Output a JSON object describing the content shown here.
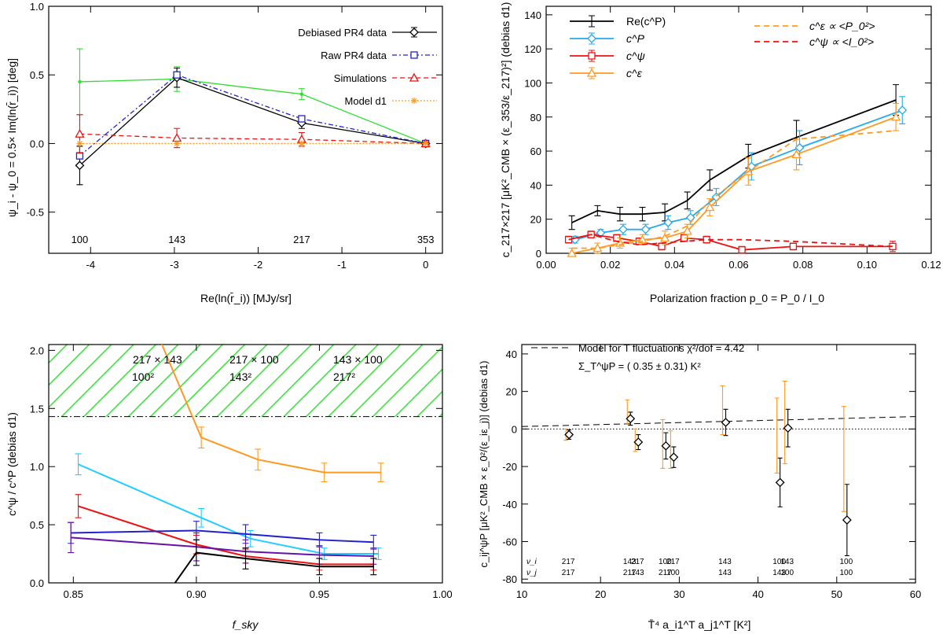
{
  "colors": {
    "black": "#000000",
    "blue": "#2222cc",
    "red": "#ee1111",
    "orange": "#ff9922",
    "green": "#33dd33",
    "sky": "#22aaee",
    "cyan": "#22ccff",
    "purple": "#6611aa"
  },
  "chart_data": [
    {
      "type": "line",
      "id": "p1",
      "ylabel": "ψ_i - ψ_0 = 0.5× Im(ln(r̄_i)) [deg]",
      "xlabel": "Re(ln(r̄_i)) [MJy/sr]",
      "xlim": [
        -4.5,
        0.2
      ],
      "ylim": [
        -0.8,
        1.0
      ],
      "xticks": [
        -4,
        -3,
        -2,
        -1,
        0
      ],
      "yticks": [
        -0.5,
        0.0,
        0.5,
        1.0
      ],
      "frequency_labels": [
        {
          "x": -4.13,
          "text": "100"
        },
        {
          "x": -2.97,
          "text": "143"
        },
        {
          "x": -1.48,
          "text": "217"
        },
        {
          "x": 0,
          "text": "353"
        }
      ],
      "legend": [
        {
          "label": "Debiased PR4 data",
          "color": "black",
          "dash": "",
          "marker": "diamond"
        },
        {
          "label": "Raw PR4 data",
          "color": "blue",
          "dash": "6,3,2,3",
          "marker": "square"
        },
        {
          "label": "Simulations",
          "color": "red",
          "dash": "6,4",
          "marker": "triangle"
        },
        {
          "label": "Model d1",
          "color": "orange",
          "dash": "2,2",
          "marker": "star"
        }
      ],
      "series": [
        {
          "name": "Green",
          "color": "green",
          "dash": "",
          "marker": "point",
          "x": [
            -4.13,
            -2.97,
            -1.48,
            0
          ],
          "y": [
            0.45,
            0.47,
            0.36,
            0.0
          ],
          "err": [
            0.24,
            0.09,
            0.04,
            0.01
          ]
        },
        {
          "name": "Debiased PR4 data",
          "color": "black",
          "dash": "",
          "marker": "diamond",
          "x": [
            -4.13,
            -2.97,
            -1.48,
            0
          ],
          "y": [
            -0.16,
            0.48,
            0.15,
            0.0
          ],
          "err": [
            0.14,
            0.07,
            0.04,
            0.01
          ]
        },
        {
          "name": "Raw PR4 data",
          "color": "blue",
          "dash": "6,3,2,3",
          "marker": "square",
          "x": [
            -4.13,
            -2.97,
            -1.48,
            0
          ],
          "y": [
            -0.09,
            0.5,
            0.18,
            0.0
          ],
          "err": [
            0,
            0,
            0,
            0
          ]
        },
        {
          "name": "Simulations",
          "color": "red",
          "dash": "6,4",
          "marker": "triangle",
          "x": [
            -4.13,
            -2.97,
            -1.48,
            0
          ],
          "y": [
            0.07,
            0.04,
            0.03,
            0.0
          ],
          "err": [
            0.14,
            0.07,
            0.05,
            0.01
          ]
        },
        {
          "name": "Model d1",
          "color": "orange",
          "dash": "2,2",
          "marker": "star",
          "x": [
            -4.13,
            -2.97,
            -1.48,
            0
          ],
          "y": [
            0.0,
            0.0,
            0.0,
            0.0
          ],
          "err": [
            0,
            0,
            0,
            0
          ]
        }
      ]
    },
    {
      "type": "line",
      "id": "p2",
      "ylabel": "c_217×217 [μK²_CMB × (ε_353/ε_217)²] (debias d1)",
      "xlabel": "Polarization fraction p_0 = P_0 / I_0",
      "xlim": [
        0,
        0.12
      ],
      "ylim": [
        0,
        145
      ],
      "xticks": [
        0.0,
        0.02,
        0.04,
        0.06,
        0.08,
        0.1,
        0.12
      ],
      "yticks": [
        0,
        20,
        40,
        60,
        80,
        100,
        120,
        140
      ],
      "legend": [
        {
          "label": "Re(c^P)",
          "color": "black"
        },
        {
          "label": "c^P",
          "color": "sky"
        },
        {
          "label": "c^ψ",
          "color": "red"
        },
        {
          "label": "c^ε",
          "color": "orange"
        },
        {
          "label": "c^ε ∝ <P_0²>",
          "color": "orange"
        },
        {
          "label": "c^ψ ∝ <I_0²>",
          "color": "red"
        }
      ],
      "series": [
        {
          "name": "Re(c^P)",
          "color": "black",
          "marker": "point",
          "x": [
            0.008,
            0.016,
            0.023,
            0.03,
            0.037,
            0.044,
            0.051,
            0.063,
            0.078,
            0.109
          ],
          "y": [
            18,
            25,
            23,
            23,
            24,
            31,
            43,
            57,
            68,
            90
          ],
          "err": [
            4,
            3,
            4,
            4,
            5,
            5,
            6,
            7,
            10,
            9
          ]
        },
        {
          "name": "c^P",
          "color": "sky",
          "marker": "diamond",
          "x": [
            0.009,
            0.017,
            0.024,
            0.031,
            0.038,
            0.045,
            0.053,
            0.064,
            0.079,
            0.111
          ],
          "y": [
            8,
            12,
            14,
            14,
            18,
            21,
            33,
            51,
            62,
            84
          ],
          "err": [
            2,
            2,
            3,
            3,
            4,
            4,
            5,
            8,
            10,
            8
          ]
        },
        {
          "name": "c^ψ",
          "color": "red",
          "marker": "square",
          "x": [
            0.007,
            0.014,
            0.022,
            0.029,
            0.036,
            0.043,
            0.05,
            0.061,
            0.077,
            0.108
          ],
          "y": [
            8,
            11,
            9,
            7,
            4,
            9,
            8,
            2,
            4,
            4
          ],
          "err": [
            2,
            2,
            2,
            2,
            2,
            2,
            2,
            2,
            2,
            3
          ]
        },
        {
          "name": "c^ε",
          "color": "orange",
          "marker": "triangle",
          "x": [
            0.008,
            0.016,
            0.023,
            0.03,
            0.037,
            0.044,
            0.051,
            0.063,
            0.078,
            0.109
          ],
          "y": [
            0,
            3,
            6,
            8,
            9,
            13,
            27,
            48,
            58,
            80
          ],
          "err": [
            3,
            3,
            3,
            3,
            4,
            4,
            5,
            8,
            9,
            8
          ]
        },
        {
          "name": "c^ε ∝ <P_0²>",
          "color": "orange",
          "dash": "7,5",
          "marker": "none",
          "x": [
            0.008,
            0.016,
            0.023,
            0.03,
            0.037,
            0.044,
            0.051,
            0.063,
            0.078,
            0.109
          ],
          "y": [
            3,
            3,
            5,
            7,
            10,
            16,
            31,
            48,
            67,
            72
          ],
          "err": []
        },
        {
          "name": "c^ψ ∝ <I_0²>",
          "color": "red",
          "dash": "7,5",
          "marker": "none",
          "x": [
            0.007,
            0.014,
            0.022,
            0.029,
            0.036,
            0.043,
            0.05,
            0.061,
            0.077,
            0.108
          ],
          "y": [
            8,
            11,
            7,
            5,
            6,
            7,
            8,
            8,
            7,
            4
          ],
          "err": []
        }
      ]
    },
    {
      "type": "line",
      "id": "p3",
      "ylabel": "c^ψ / c^P (debias d1)",
      "xlabel": "f_sky",
      "xlim": [
        0.84,
        1.0
      ],
      "ylim": [
        0,
        2.05
      ],
      "xticks": [
        0.85,
        0.9,
        0.95,
        1.0
      ],
      "yticks": [
        0.0,
        0.5,
        1.0,
        1.5,
        2.0
      ],
      "hatch_from": 1.43,
      "labels": [
        {
          "text": "217 × 143",
          "color": "red"
        },
        {
          "text": "217 × 100",
          "color": "blue"
        },
        {
          "text": "143 × 100",
          "color": "black"
        },
        {
          "text": "100²",
          "color": "orange"
        },
        {
          "text": "143²",
          "color": "cyan"
        },
        {
          "text": "217²",
          "color": "purple"
        }
      ],
      "series": [
        {
          "name": "100²",
          "color": "orange",
          "x": [
            0.885,
            0.902,
            0.925,
            0.952,
            0.975
          ],
          "y": [
            2.1,
            1.25,
            1.06,
            0.95,
            0.95
          ],
          "err": [
            0,
            0.09,
            0.09,
            0.08,
            0.08
          ]
        },
        {
          "name": "143²",
          "color": "cyan",
          "x": [
            0.852,
            0.902,
            0.922,
            0.952,
            0.974
          ],
          "y": [
            1.02,
            0.56,
            0.38,
            0.25,
            0.25
          ],
          "err": [
            0.09,
            0.08,
            0.07,
            0.05,
            0.05
          ]
        },
        {
          "name": "217 × 143",
          "color": "red",
          "x": [
            0.852,
            0.9,
            0.92,
            0.95,
            0.972
          ],
          "y": [
            0.66,
            0.33,
            0.23,
            0.16,
            0.16
          ],
          "err": [
            0.1,
            0.08,
            0.06,
            0.05,
            0.05
          ]
        },
        {
          "name": "217 × 100",
          "color": "blue",
          "x": [
            0.849,
            0.9,
            0.92,
            0.95,
            0.972
          ],
          "y": [
            0.43,
            0.45,
            0.42,
            0.37,
            0.35
          ],
          "err": [
            0.09,
            0.08,
            0.08,
            0.06,
            0.06
          ]
        },
        {
          "name": "217²",
          "color": "purple",
          "x": [
            0.849,
            0.9,
            0.92,
            0.95,
            0.972
          ],
          "y": [
            0.39,
            0.31,
            0.27,
            0.24,
            0.23
          ],
          "err": [
            0.13,
            0.12,
            0.1,
            0.08,
            0.07
          ]
        },
        {
          "name": "143 × 100",
          "color": "black",
          "x": [
            0.888,
            0.9,
            0.92,
            0.95,
            0.972
          ],
          "y": [
            -0.1,
            0.26,
            0.21,
            0.14,
            0.14
          ],
          "err": [
            0,
            0.11,
            0.09,
            0.07,
            0.07
          ]
        }
      ]
    },
    {
      "type": "scatter",
      "id": "p4",
      "ylabel": "c_ij^ψP [μK²_CMB × ε_0²/(ε_iε_j)] (debias d1)",
      "xlabel": "T̄⁴ a_i1^T a_j1^T [K²]",
      "xlim": [
        10,
        60
      ],
      "ylim": [
        -82,
        45
      ],
      "xticks": [
        10,
        20,
        30,
        40,
        50,
        60
      ],
      "yticks": [
        -80,
        -60,
        -40,
        -20,
        0,
        20,
        40
      ],
      "legend_text": "Model for T fluctuations χ²/dof = 4.42",
      "sigma_text": "Σ_T^ψP = ( 0.35 ± 0.31) K²",
      "model_line": {
        "x": [
          10,
          60
        ],
        "y": [
          1.3,
          6.6
        ]
      },
      "nu_i_label": "ν_i",
      "nu_j_label": "ν_j",
      "points": [
        {
          "x": 15.9,
          "y": -3,
          "err": 2.5,
          "oy": -3,
          "oerr": 3,
          "ni": "217",
          "nj": "217"
        },
        {
          "x": 23.7,
          "y": 5.5,
          "err": 3.5,
          "oy": 9,
          "oerr": 6.5,
          "ni": "143",
          "nj": "217"
        },
        {
          "x": 24.7,
          "y": -7,
          "err": 4,
          "oy": -6,
          "oerr": 6,
          "ni": "217",
          "nj": "143"
        },
        {
          "x": 28.2,
          "y": -9,
          "err": 7,
          "oy": -8,
          "oerr": 13,
          "ni": "100",
          "nj": "217"
        },
        {
          "x": 29.2,
          "y": -15,
          "err": 5.5,
          "oy": -11,
          "oerr": 10,
          "ni": "217",
          "nj": "100"
        },
        {
          "x": 35.8,
          "y": 3.5,
          "err": 7,
          "oy": 10,
          "oerr": 13,
          "ni": "143",
          "nj": "143"
        },
        {
          "x": 42.7,
          "y": -28.5,
          "err": 13,
          "oy": -3.5,
          "oerr": 20,
          "ni": "100",
          "nj": "143"
        },
        {
          "x": 43.7,
          "y": 0.5,
          "err": 10,
          "oy": 3.5,
          "oerr": 22,
          "ni": "143",
          "nj": "100"
        },
        {
          "x": 51.2,
          "y": -48.5,
          "err": 19,
          "oy": -16,
          "oerr": 28,
          "ni": "100",
          "nj": "100"
        }
      ]
    }
  ]
}
